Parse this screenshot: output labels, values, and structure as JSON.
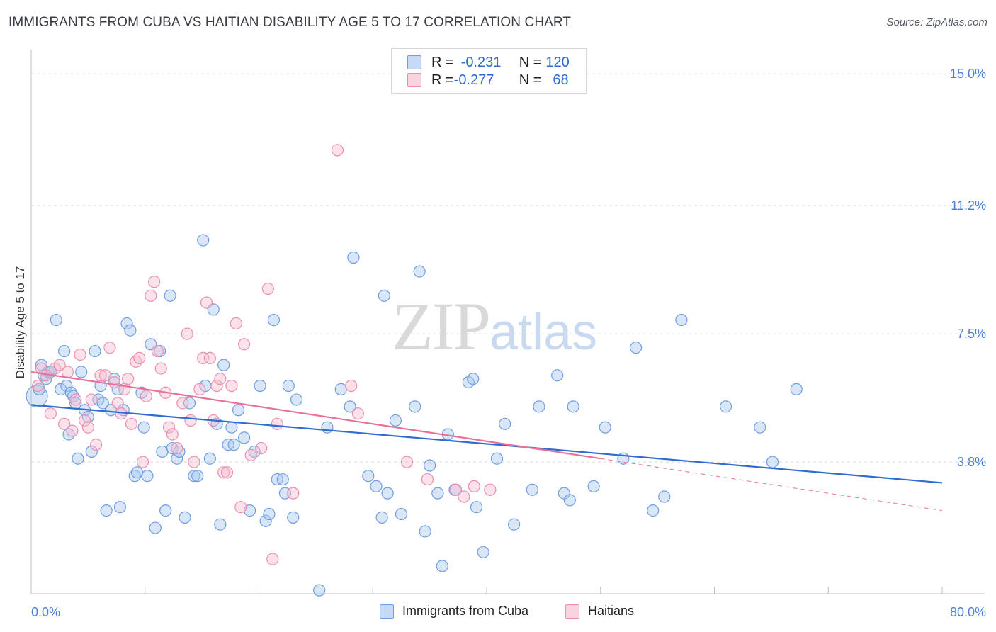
{
  "header": {
    "title": "IMMIGRANTS FROM CUBA VS HAITIAN DISABILITY AGE 5 TO 17 CORRELATION CHART",
    "source": "Source: ZipAtlas.com"
  },
  "watermark": {
    "zip": "ZIP",
    "atlas": "atlas"
  },
  "legend": {
    "rows": [
      {
        "r_label": "R = ",
        "r_value": "-0.231",
        "n_label": "N = ",
        "n_value": "120"
      },
      {
        "r_label": "R = ",
        "r_value": "-0.277",
        "n_label": "N = ",
        "n_value": "68"
      }
    ]
  },
  "colors": {
    "cuba_fill": "#a9c8f0",
    "cuba_stroke": "#6f9ee0",
    "cuba_line": "#2f6bd1",
    "haiti_fill": "#f6bdd0",
    "haiti_stroke": "#ea8fb0",
    "haiti_line": "#e8709a",
    "grid": "#d6d6d6",
    "tick_text": "#4a7fd6"
  },
  "chart_data": {
    "type": "scatter",
    "title": "IMMIGRANTS FROM CUBA VS HAITIAN DISABILITY AGE 5 TO 17 CORRELATION CHART",
    "xlabel": "",
    "ylabel": "Disability Age 5 to 17",
    "xlim": [
      0,
      80
    ],
    "ylim": [
      0,
      15.7
    ],
    "x_tick_labels": [
      "0.0%",
      "80.0%"
    ],
    "y_ticks": [
      3.8,
      7.5,
      11.2,
      15.0
    ],
    "y_tick_labels": [
      "3.8%",
      "7.5%",
      "11.2%",
      "15.0%"
    ],
    "grid": true,
    "legend_position": "top-center",
    "series": [
      {
        "name": "Immigrants from Cuba",
        "r": -0.231,
        "n": 120,
        "trend": {
          "x": [
            0,
            80
          ],
          "y": [
            5.45,
            3.2
          ]
        },
        "points": [
          [
            0.5,
            5.7
          ],
          [
            0.7,
            5.9
          ],
          [
            0.9,
            6.6
          ],
          [
            1.1,
            6.3
          ],
          [
            1.3,
            6.2
          ],
          [
            1.5,
            6.4
          ],
          [
            1.7,
            6.4
          ],
          [
            2.2,
            7.9
          ],
          [
            2.6,
            5.9
          ],
          [
            2.9,
            7.0
          ],
          [
            3.1,
            6.0
          ],
          [
            3.3,
            4.6
          ],
          [
            3.5,
            5.8
          ],
          [
            3.7,
            5.7
          ],
          [
            3.9,
            5.5
          ],
          [
            4.1,
            3.9
          ],
          [
            4.4,
            6.4
          ],
          [
            4.7,
            5.3
          ],
          [
            5.0,
            5.1
          ],
          [
            5.3,
            4.1
          ],
          [
            5.6,
            7.0
          ],
          [
            5.9,
            5.6
          ],
          [
            6.1,
            6.0
          ],
          [
            6.3,
            5.5
          ],
          [
            6.6,
            2.4
          ],
          [
            7.0,
            5.3
          ],
          [
            7.3,
            6.2
          ],
          [
            7.6,
            5.9
          ],
          [
            7.8,
            2.5
          ],
          [
            8.1,
            5.3
          ],
          [
            8.4,
            7.8
          ],
          [
            8.7,
            7.6
          ],
          [
            9.1,
            3.4
          ],
          [
            9.3,
            3.5
          ],
          [
            9.7,
            5.8
          ],
          [
            9.9,
            4.8
          ],
          [
            10.2,
            3.4
          ],
          [
            10.5,
            7.2
          ],
          [
            10.9,
            1.9
          ],
          [
            11.3,
            7.0
          ],
          [
            11.5,
            4.1
          ],
          [
            11.8,
            2.4
          ],
          [
            12.2,
            8.6
          ],
          [
            12.4,
            4.2
          ],
          [
            12.8,
            3.9
          ],
          [
            13.0,
            4.1
          ],
          [
            13.5,
            2.2
          ],
          [
            13.9,
            5.5
          ],
          [
            14.3,
            3.4
          ],
          [
            14.6,
            3.4
          ],
          [
            15.1,
            10.2
          ],
          [
            15.3,
            6.0
          ],
          [
            15.7,
            3.9
          ],
          [
            16.0,
            8.2
          ],
          [
            16.3,
            4.9
          ],
          [
            16.6,
            2.0
          ],
          [
            16.9,
            6.6
          ],
          [
            17.3,
            4.3
          ],
          [
            17.6,
            4.8
          ],
          [
            17.8,
            4.3
          ],
          [
            18.2,
            5.3
          ],
          [
            18.7,
            4.5
          ],
          [
            19.2,
            2.4
          ],
          [
            19.6,
            4.1
          ],
          [
            20.1,
            6.0
          ],
          [
            20.6,
            2.1
          ],
          [
            20.9,
            2.3
          ],
          [
            21.3,
            7.9
          ],
          [
            21.6,
            3.3
          ],
          [
            22.1,
            3.3
          ],
          [
            22.3,
            2.9
          ],
          [
            22.6,
            6.0
          ],
          [
            23.0,
            2.2
          ],
          [
            23.3,
            5.6
          ],
          [
            25.3,
            0.1
          ],
          [
            26.0,
            4.8
          ],
          [
            27.2,
            5.9
          ],
          [
            28.0,
            5.4
          ],
          [
            28.3,
            9.7
          ],
          [
            29.6,
            3.4
          ],
          [
            30.3,
            3.1
          ],
          [
            30.8,
            2.2
          ],
          [
            31.0,
            8.6
          ],
          [
            31.3,
            2.9
          ],
          [
            32.0,
            5.0
          ],
          [
            32.5,
            2.3
          ],
          [
            33.7,
            5.4
          ],
          [
            34.1,
            9.3
          ],
          [
            34.6,
            1.8
          ],
          [
            35.0,
            3.7
          ],
          [
            35.7,
            2.9
          ],
          [
            36.1,
            0.8
          ],
          [
            36.6,
            4.6
          ],
          [
            37.2,
            3.0
          ],
          [
            38.4,
            6.1
          ],
          [
            38.8,
            6.2
          ],
          [
            39.1,
            2.5
          ],
          [
            39.7,
            1.2
          ],
          [
            40.9,
            3.9
          ],
          [
            41.6,
            4.9
          ],
          [
            42.4,
            2.0
          ],
          [
            44.0,
            3.0
          ],
          [
            44.6,
            5.4
          ],
          [
            46.2,
            6.3
          ],
          [
            46.8,
            2.9
          ],
          [
            47.3,
            2.7
          ],
          [
            47.6,
            5.4
          ],
          [
            49.4,
            3.1
          ],
          [
            50.4,
            4.8
          ],
          [
            52.0,
            3.9
          ],
          [
            53.1,
            7.1
          ],
          [
            54.6,
            2.4
          ],
          [
            55.6,
            2.8
          ],
          [
            57.1,
            7.9
          ],
          [
            61.0,
            5.4
          ],
          [
            64.0,
            4.8
          ],
          [
            65.1,
            3.8
          ],
          [
            67.2,
            5.9
          ]
        ]
      },
      {
        "name": "Haitians",
        "r": -0.277,
        "n": 68,
        "trend": {
          "x": [
            0,
            50
          ],
          "y": [
            6.4,
            3.9
          ]
        },
        "trend_extension": {
          "x": [
            50,
            80
          ],
          "y": [
            3.9,
            2.4
          ]
        },
        "points": [
          [
            0.6,
            6.0
          ],
          [
            0.9,
            6.5
          ],
          [
            1.3,
            6.3
          ],
          [
            1.7,
            5.2
          ],
          [
            2.1,
            6.5
          ],
          [
            2.5,
            6.6
          ],
          [
            2.9,
            4.9
          ],
          [
            3.2,
            6.4
          ],
          [
            3.6,
            4.7
          ],
          [
            3.9,
            5.6
          ],
          [
            4.3,
            6.9
          ],
          [
            4.7,
            5.0
          ],
          [
            5.0,
            4.8
          ],
          [
            5.3,
            5.6
          ],
          [
            5.7,
            4.3
          ],
          [
            6.1,
            6.3
          ],
          [
            6.5,
            6.3
          ],
          [
            6.9,
            7.1
          ],
          [
            7.3,
            6.1
          ],
          [
            7.6,
            5.5
          ],
          [
            7.9,
            5.2
          ],
          [
            8.2,
            5.9
          ],
          [
            8.5,
            6.2
          ],
          [
            8.8,
            4.9
          ],
          [
            9.2,
            6.7
          ],
          [
            9.5,
            6.8
          ],
          [
            9.8,
            3.8
          ],
          [
            10.1,
            5.7
          ],
          [
            10.5,
            8.6
          ],
          [
            10.8,
            9.0
          ],
          [
            11.1,
            7.0
          ],
          [
            11.4,
            6.5
          ],
          [
            11.8,
            5.8
          ],
          [
            12.1,
            4.8
          ],
          [
            12.4,
            4.6
          ],
          [
            12.8,
            4.2
          ],
          [
            13.3,
            5.5
          ],
          [
            13.7,
            7.5
          ],
          [
            14.0,
            5.0
          ],
          [
            14.3,
            3.8
          ],
          [
            14.8,
            5.9
          ],
          [
            15.1,
            6.8
          ],
          [
            15.4,
            8.4
          ],
          [
            15.7,
            6.8
          ],
          [
            16.0,
            5.0
          ],
          [
            16.3,
            6.0
          ],
          [
            16.6,
            6.2
          ],
          [
            16.9,
            3.5
          ],
          [
            17.2,
            3.5
          ],
          [
            17.6,
            6.0
          ],
          [
            18.0,
            7.8
          ],
          [
            18.4,
            2.5
          ],
          [
            18.7,
            7.2
          ],
          [
            19.3,
            4.0
          ],
          [
            20.2,
            4.2
          ],
          [
            20.8,
            8.8
          ],
          [
            21.2,
            1.0
          ],
          [
            21.6,
            4.9
          ],
          [
            23.0,
            2.9
          ],
          [
            26.9,
            12.8
          ],
          [
            28.1,
            6.0
          ],
          [
            28.7,
            5.2
          ],
          [
            33.0,
            3.8
          ],
          [
            34.8,
            3.3
          ],
          [
            37.3,
            3.0
          ],
          [
            38.0,
            2.8
          ],
          [
            38.9,
            3.1
          ],
          [
            40.3,
            3.0
          ]
        ]
      }
    ]
  },
  "bottom_legend": {
    "items": [
      {
        "label": "Immigrants from Cuba"
      },
      {
        "label": "Haitians"
      }
    ]
  },
  "axis": {
    "x_left": "0.0%",
    "x_right": "80.0%",
    "ylabel": "Disability Age 5 to 17"
  }
}
